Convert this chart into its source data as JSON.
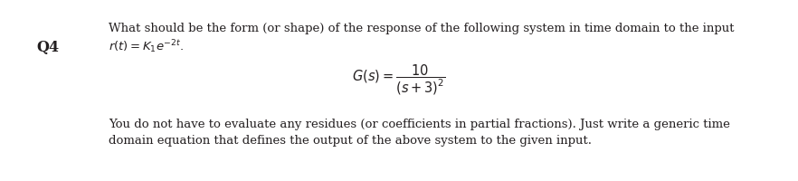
{
  "background_color": "#ffffff",
  "text_color": "#231f20",
  "q_label": "Q4",
  "line1": "What should be the form (or shape) of the response of the following system in time domain to the input",
  "line2": "$r(t) = K_1e^{-2t}.$",
  "gs_math": "$G(s) = \\dfrac{10}{(s+3)^2}$",
  "footer1": "You do not have to evaluate any residues (or coefficients in partial fractions). Just write a generic time",
  "footer2": "domain equation that defines the output of the above system to the given input.",
  "body_fontsize": 9.5,
  "q_fontsize": 11.5,
  "gs_fontsize": 10.5
}
